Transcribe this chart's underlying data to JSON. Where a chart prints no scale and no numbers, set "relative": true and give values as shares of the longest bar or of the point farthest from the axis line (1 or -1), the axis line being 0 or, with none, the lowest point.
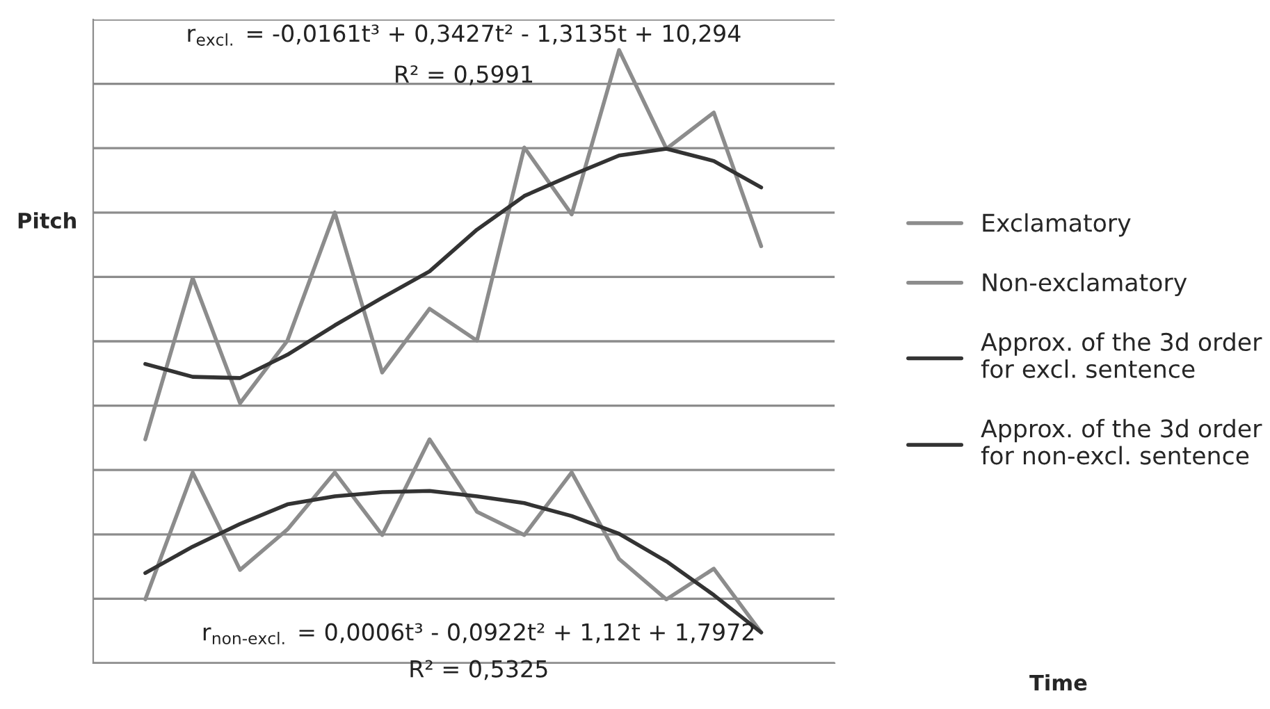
{
  "chart_data": {
    "type": "line",
    "relative": true,
    "ylabel": "Pitch",
    "categories": [
      null,
      null,
      null,
      null,
      null,
      null,
      null,
      null,
      null,
      null,
      null,
      null,
      null,
      null
    ],
    "series": [
      {
        "name": "Exclamatory",
        "color": "#8c8c8c",
        "values": [
          0.365,
          0.628,
          0.424,
          0.526,
          0.735,
          0.474,
          0.578,
          0.526,
          0.841,
          0.732,
          1,
          0.839,
          0.898,
          0.68
        ]
      },
      {
        "name": "Non-exclamatory",
        "color": "#8c8c8c",
        "values": [
          0.104,
          0.311,
          0.152,
          0.218,
          0.311,
          0.209,
          0.365,
          0.247,
          0.209,
          0.311,
          0.17,
          0.104,
          0.154,
          0.05
        ]
      },
      {
        "name": "Approx. of the 3d order\nfor excl. sentence",
        "color": "#333333",
        "values": [
          0.488,
          0.467,
          0.465,
          0.503,
          0.551,
          0.596,
          0.639,
          0.707,
          0.762,
          0.796,
          0.828,
          0.839,
          0.819,
          0.776
        ]
      },
      {
        "name": "Approx. of the 3d order\nfor non-excl. sentence",
        "color": "#333333",
        "values": [
          0.147,
          0.19,
          0.227,
          0.259,
          0.272,
          0.279,
          0.281,
          0.272,
          0.261,
          0.24,
          0.211,
          0.166,
          0.111,
          0.05
        ]
      }
    ],
    "annotations": [
      "r$_{excl.}$ = -0,0161t³ + 0,3427t² - 1,3135t + 10,294",
      "R² = 0,5991",
      "r$_{non-excl.}$ = 0,0006t³ - 0,0922t² + 1,12t + 1,7972",
      "R² = 0,5325",
      "Time"
    ],
    "grid": "y",
    "legend": "right"
  }
}
